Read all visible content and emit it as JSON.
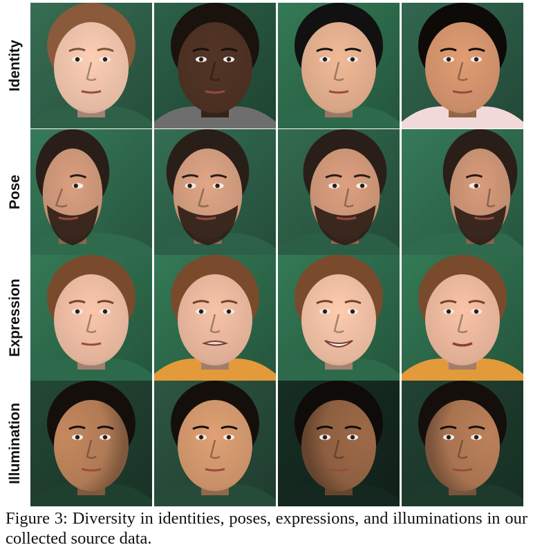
{
  "figure": {
    "rows": [
      {
        "label": "Identity",
        "photos": [
          {
            "desc": "woman-fair-skin",
            "bg": "#2f6048",
            "skin": "#e2b9a2",
            "hair": "#8a5a3a",
            "shirt": "#2f6048"
          },
          {
            "desc": "man-dark-skin",
            "bg": "#26543f",
            "skin": "#4a2f22",
            "hair": "#1a120d",
            "shirt": "#6e6e6e"
          },
          {
            "desc": "man-asian",
            "bg": "#2d6a4b",
            "skin": "#d7a687",
            "hair": "#111111",
            "shirt": "#2d6a4b"
          },
          {
            "desc": "woman-tan-skin",
            "bg": "#2b5a45",
            "skin": "#c98c67",
            "hair": "#0e0a08",
            "shirt": "#f2d9d9"
          }
        ]
      },
      {
        "label": "Pose",
        "photos": [
          {
            "desc": "bearded-man-profile-left",
            "bg": "#2f6a4d",
            "skin": "#c38f72",
            "hair": "#2a1e18",
            "shirt": "#2f6a4d",
            "yaw": -0.9
          },
          {
            "desc": "bearded-man-three-quarter-left",
            "bg": "#2d6048",
            "skin": "#c89478",
            "hair": "#2a1e18",
            "shirt": "#2d6048",
            "yaw": -0.35
          },
          {
            "desc": "bearded-man-three-quarter-right",
            "bg": "#2c5d45",
            "skin": "#c58f72",
            "hair": "#2a1e18",
            "shirt": "#2c5d45",
            "yaw": 0.3
          },
          {
            "desc": "bearded-man-profile-right",
            "bg": "#2f6a4d",
            "skin": "#c08b6e",
            "hair": "#2a1e18",
            "shirt": "#2f6a4d",
            "yaw": 0.85
          }
        ]
      },
      {
        "label": "Expression",
        "photos": [
          {
            "desc": "young-man-neutral",
            "bg": "#2d6a4b",
            "skin": "#e0b29a",
            "hair": "#7a4a2c",
            "shirt": "#2d6a4b",
            "mouth": "neutral"
          },
          {
            "desc": "young-man-frown",
            "bg": "#2d6a4b",
            "skin": "#ddae95",
            "hair": "#7a4a2c",
            "shirt": "#e39a3a",
            "mouth": "grimace"
          },
          {
            "desc": "young-man-smile",
            "bg": "#2d6a4b",
            "skin": "#e3b59b",
            "hair": "#7a4a2c",
            "shirt": "#2d6a4b",
            "mouth": "smile"
          },
          {
            "desc": "young-man-pout",
            "bg": "#2d6a4b",
            "skin": "#dfae95",
            "hair": "#7a4a2c",
            "shirt": "#e39a3a",
            "mouth": "pout"
          }
        ]
      },
      {
        "label": "Illumination",
        "photos": [
          {
            "desc": "woman-light-left",
            "bg": "#1f3f2f",
            "skin": "#b07a55",
            "hair": "#150f0c",
            "shirt": "#1f3f2f",
            "light": -1
          },
          {
            "desc": "woman-light-front",
            "bg": "#274b39",
            "skin": "#c89068",
            "hair": "#150f0c",
            "shirt": "#274b39",
            "light": 0
          },
          {
            "desc": "woman-light-right-dark",
            "bg": "#14281f",
            "skin": "#8d5f40",
            "hair": "#0f0b09",
            "shirt": "#14281f",
            "light": 1
          },
          {
            "desc": "woman-light-right",
            "bg": "#1d3a2c",
            "skin": "#a87350",
            "hair": "#150f0c",
            "shirt": "#1d3a2c",
            "light": 0.6
          }
        ]
      }
    ]
  },
  "caption": {
    "label": "Figure 3:",
    "text": " Diversity in identities, poses, expressions, and illuminations in our collected source data."
  }
}
